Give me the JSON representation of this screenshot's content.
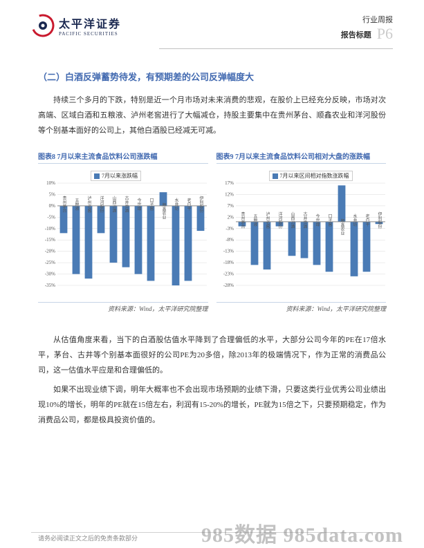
{
  "header": {
    "logo_cn": "太平洋证券",
    "logo_en": "PACIFIC SECURITIES",
    "line1": "行业周报",
    "line2": "报告标题",
    "page": "P6"
  },
  "section": {
    "title": "（二）白酒反弹蓄势待发，有预期差的公司反弹幅度大",
    "para1": "持续三个多月的下跌，特别是近一个月市场对未来消费的悲观，在股价上已经充分反映，市场对次高端、区域白酒和五粮液、泸州老窖进行了大幅减仓，持股主要集中在贵州茅台、顺鑫农业和洋河股份等个别基本面好的公司上，其他白酒股已经减无可减。"
  },
  "chart_left": {
    "title": "图表8  7月以来主流食品饮料公司涨跌幅",
    "legend": "7月以来涨跌幅",
    "source": "资料来源：Wind，太平洋研究院整理",
    "type": "bar",
    "categories": [
      "贵州茅台",
      "五粮液",
      "泸州老窖",
      "洋河股份",
      "山西汾酒",
      "古井贡酒",
      "今世缘",
      "口子窖",
      "顺鑫农业",
      "水井坊",
      "老白干",
      "伊利股份"
    ],
    "values": [
      -12,
      -30,
      -32,
      -12,
      -25,
      -27,
      -30,
      -33,
      6,
      -35,
      -33,
      -11
    ],
    "bar_color": "#4a7bb5",
    "ylim": [
      -35,
      10
    ],
    "ytick_step": 5,
    "tick_fontsize": 7,
    "cat_fontsize": 6,
    "grid_color": "#d9d9d9",
    "axis_color": "#888888",
    "background": "#ffffff"
  },
  "chart_right": {
    "title": "图表9 7月以来主流食品饮料公司相对大盘的涨跌幅",
    "legend": "7月以来区间相对指数涨跌幅",
    "source": "资料来源：Wind，太平洋研究院整理",
    "type": "bar",
    "categories": [
      "贵州茅台",
      "五粮液",
      "泸州老窖",
      "洋河股份",
      "山西汾酒",
      "古井贡酒",
      "今世缘",
      "口子窖",
      "顺鑫农业",
      "水井坊",
      "老白干",
      "伊利股份"
    ],
    "values": [
      -2,
      -19,
      -21,
      -2,
      -15,
      -16,
      -19,
      -22,
      16,
      -24,
      -22,
      -1
    ],
    "bar_color": "#4a7bb5",
    "ylim": [
      -28,
      17
    ],
    "ytick_step": 5,
    "tick_fontsize": 7,
    "cat_fontsize": 6,
    "grid_color": "#d9d9d9",
    "axis_color": "#888888",
    "background": "#ffffff"
  },
  "bottom": {
    "para2": "从估值角度来看，当下的白酒股估值水平降到了合理偏低的水平，大部分公司今年的PE在17倍水平，茅台、古井等个别基本面很好的公司PE为20多倍，除2013年的极端情况下，作为正常的消费品公司，这一估值水平应是和合理偏低的。",
    "para3": "如果不出现业绩下调，明年大概率也不会出现市场预期的业绩下滑，只要这类行业优秀公司业绩出现10%的增长，明年的PE就在15倍左右，利润有15-20%的增长，PE就为15倍之下，只要预期稳定，作为消费品公司，都是极具投资价值的。"
  },
  "footer": {
    "text": "请务必阅读正文之后的免责条款部分",
    "watermark": "985数据 985data.com"
  }
}
